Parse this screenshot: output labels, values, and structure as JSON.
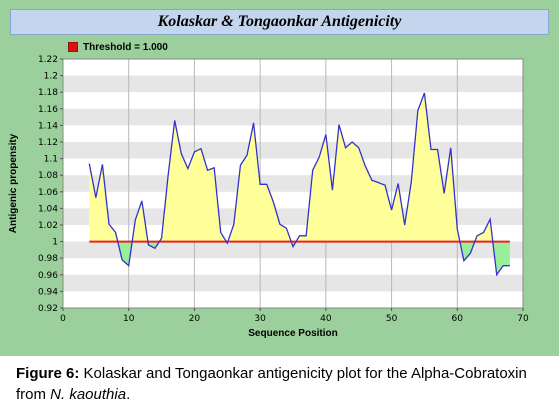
{
  "chart_data": {
    "type": "area",
    "title": "Kolaskar & Tongaonkar Antigenicity",
    "xlabel": "Sequence Position",
    "ylabel": "Antigenic propensity",
    "xlim": [
      0,
      70
    ],
    "ylim": [
      0.92,
      1.22
    ],
    "x_ticks": [
      "0",
      "10",
      "20",
      "30",
      "40",
      "50",
      "60",
      "70"
    ],
    "y_ticks": [
      "0.92",
      "0.94",
      "0.96",
      "0.98",
      "1",
      "1.02",
      "1.04",
      "1.06",
      "1.08",
      "1.1",
      "1.12",
      "1.14",
      "1.16",
      "1.18",
      "1.2",
      "1.22"
    ],
    "grid": true,
    "legend": "top-left",
    "threshold": {
      "label": "Threshold = 1.000",
      "value": 1.0
    },
    "colors": {
      "line": "#3333cc",
      "above": "#ffff99",
      "below": "#99ee99",
      "threshold": "#ee2222",
      "band": "#e6e6e6"
    },
    "series": [
      {
        "x": [
          4,
          5,
          6,
          7,
          8,
          9,
          10,
          11,
          12,
          13,
          14,
          15,
          16,
          17,
          18,
          19,
          20,
          21,
          22,
          23,
          24,
          25,
          26,
          27,
          28,
          29,
          30,
          31,
          32,
          33,
          34,
          35,
          36,
          37,
          38,
          39,
          40,
          41,
          42,
          43,
          44,
          45,
          46,
          47,
          48,
          49,
          50,
          51,
          52,
          53,
          54,
          55,
          56,
          57,
          58,
          59,
          60,
          61,
          62,
          63,
          64,
          65,
          66,
          67,
          68
        ],
        "y": [
          1.094,
          1.053,
          1.093,
          1.021,
          1.011,
          0.978,
          0.971,
          1.026,
          1.049,
          0.996,
          0.992,
          1.004,
          1.08,
          1.146,
          1.106,
          1.088,
          1.108,
          1.112,
          1.086,
          1.089,
          1.011,
          0.998,
          1.021,
          1.092,
          1.104,
          1.143,
          1.069,
          1.069,
          1.048,
          1.021,
          1.016,
          0.994,
          1.007,
          1.007,
          1.086,
          1.102,
          1.129,
          1.062,
          1.141,
          1.113,
          1.12,
          1.113,
          1.091,
          1.074,
          1.071,
          1.068,
          1.038,
          1.07,
          1.02,
          1.072,
          1.158,
          1.179,
          1.111,
          1.111,
          1.058,
          1.113,
          1.015,
          0.977,
          0.986,
          1.007,
          1.011,
          1.027,
          0.96,
          0.971,
          0.971
        ]
      }
    ]
  },
  "caption": {
    "label": "Figure 6:",
    "text_before": " Kolaskar and Tongaonkar antigenicity plot for the Alpha-Cobratoxin from ",
    "species": "N. kaouthia",
    "text_after": "."
  }
}
